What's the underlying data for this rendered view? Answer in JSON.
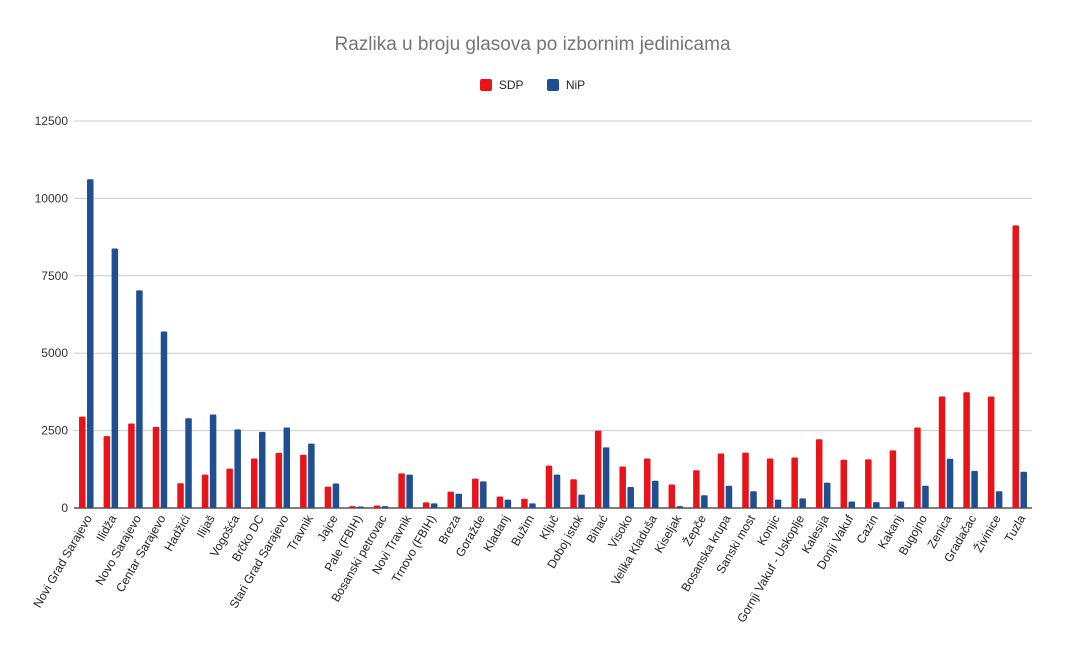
{
  "chart_data": {
    "type": "bar",
    "title": "Razlika u broju glasova po izbornim jedinicama",
    "xlabel": "",
    "ylabel": "",
    "ylim": [
      0,
      12500
    ],
    "yticks": [
      "0",
      "2500",
      "5000",
      "7500",
      "10000",
      "12500"
    ],
    "ytick_values": [
      0,
      2500,
      5000,
      7500,
      10000,
      12500
    ],
    "grid": true,
    "legend_position": "top-center",
    "categories": [
      "Novi Grad Sarajevo",
      "Ilidža",
      "Novo Sarajevo",
      "Centar Sarajevo",
      "Hadžići",
      "Ilijaš",
      "Vogošća",
      "Brčko DC",
      "Stari Grad Sarajevo",
      "Travnik",
      "Jajce",
      "Pale (FBIH)",
      "Bosanski petrovac",
      "Novi Travnik",
      "Trnovo (FBIH)",
      "Breza",
      "Goražde",
      "Kladanj",
      "Bužim",
      "Ključ",
      "Doboj istok",
      "Bihać",
      "Visoko",
      "Velika Kladuša",
      "Kiseljak",
      "Žepče",
      "Bosanska krupa",
      "Sanski most",
      "Konjic",
      "Gornji Vakuf - Uskoplje",
      "Kalesija",
      "Donji Vakuf",
      "Cazin",
      "Kakanj",
      "Bugojno",
      "Zenica",
      "Gradačac",
      "Živinice",
      "Tuzla"
    ],
    "series": [
      {
        "name": "SDP",
        "color": "#e8141a",
        "values": [
          2950,
          2320,
          2730,
          2620,
          800,
          1080,
          1270,
          1600,
          1780,
          1720,
          690,
          60,
          80,
          1120,
          180,
          530,
          950,
          370,
          300,
          1370,
          930,
          2500,
          1340,
          1600,
          760,
          1220,
          1760,
          1790,
          1600,
          1630,
          2220,
          1560,
          1570,
          1860,
          2600,
          3600,
          3740,
          3600,
          9130
        ]
      },
      {
        "name": "NiP",
        "color": "#1f4e91",
        "values": [
          10620,
          8380,
          7030,
          5700,
          2900,
          3020,
          2540,
          2460,
          2600,
          2080,
          790,
          50,
          60,
          1080,
          150,
          460,
          860,
          270,
          150,
          1080,
          430,
          1960,
          680,
          880,
          60,
          410,
          720,
          540,
          270,
          310,
          820,
          210,
          190,
          210,
          720,
          1590,
          1200,
          540,
          1170
        ]
      }
    ]
  }
}
